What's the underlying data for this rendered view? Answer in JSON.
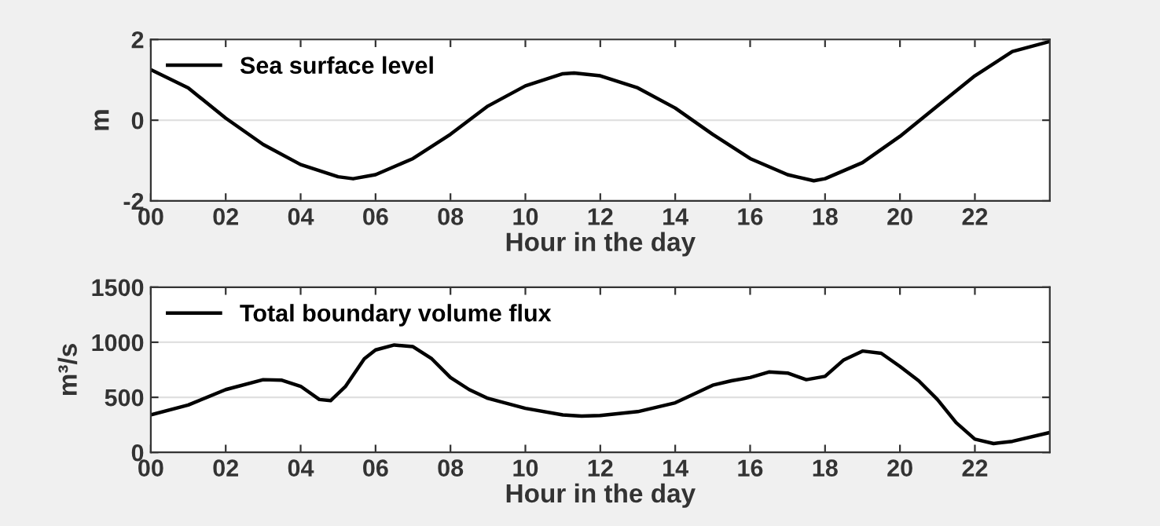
{
  "chart_data": [
    {
      "type": "line",
      "xlabel": "Hour in the day",
      "ylabel": "m",
      "xlim": [
        0,
        24
      ],
      "ylim": [
        -2,
        2
      ],
      "yticks": [
        -2,
        0,
        2
      ],
      "xticks": [
        {
          "value": 0,
          "label": "00"
        },
        {
          "value": 2,
          "label": "02"
        },
        {
          "value": 4,
          "label": "04"
        },
        {
          "value": 6,
          "label": "06"
        },
        {
          "value": 8,
          "label": "08"
        },
        {
          "value": 10,
          "label": "10"
        },
        {
          "value": 12,
          "label": "12"
        },
        {
          "value": 14,
          "label": "14"
        },
        {
          "value": 16,
          "label": "16"
        },
        {
          "value": 18,
          "label": "18"
        },
        {
          "value": 20,
          "label": "20"
        },
        {
          "value": 22,
          "label": "22"
        }
      ],
      "grid": "y",
      "legend": "top left",
      "series": [
        {
          "name": "Sea surface level",
          "color": "#000000",
          "x": [
            0,
            1,
            2,
            3,
            4,
            5,
            5.4,
            6,
            7,
            8,
            9,
            10,
            11,
            11.3,
            12,
            13,
            14,
            15,
            16,
            17,
            17.7,
            18,
            19,
            20,
            21,
            22,
            23,
            24
          ],
          "values": [
            1.25,
            0.8,
            0.05,
            -0.6,
            -1.1,
            -1.4,
            -1.45,
            -1.35,
            -0.95,
            -0.35,
            0.35,
            0.85,
            1.15,
            1.17,
            1.1,
            0.8,
            0.3,
            -0.35,
            -0.95,
            -1.35,
            -1.5,
            -1.45,
            -1.05,
            -0.4,
            0.35,
            1.1,
            1.7,
            1.95
          ]
        }
      ]
    },
    {
      "type": "line",
      "xlabel": "Hour in the day",
      "ylabel": "m³/s",
      "xlim": [
        0,
        24
      ],
      "ylim": [
        0,
        1500
      ],
      "yticks": [
        0,
        500,
        1000,
        1500
      ],
      "xticks": [
        {
          "value": 0,
          "label": "00"
        },
        {
          "value": 2,
          "label": "02"
        },
        {
          "value": 4,
          "label": "04"
        },
        {
          "value": 6,
          "label": "06"
        },
        {
          "value": 8,
          "label": "08"
        },
        {
          "value": 10,
          "label": "10"
        },
        {
          "value": 12,
          "label": "12"
        },
        {
          "value": 14,
          "label": "14"
        },
        {
          "value": 16,
          "label": "16"
        },
        {
          "value": 18,
          "label": "18"
        },
        {
          "value": 20,
          "label": "20"
        },
        {
          "value": 22,
          "label": "22"
        }
      ],
      "grid": "y",
      "legend": "top left",
      "series": [
        {
          "name": "Total boundary volume flux",
          "color": "#000000",
          "x": [
            0,
            1,
            2,
            3,
            3.5,
            4,
            4.5,
            4.8,
            5.2,
            5.7,
            6,
            6.5,
            7,
            7.5,
            8,
            8.5,
            9,
            10,
            11,
            11.5,
            12,
            13,
            14,
            15,
            15.5,
            16,
            16.5,
            17,
            17.5,
            18,
            18.5,
            19,
            19.5,
            20,
            20.5,
            21,
            21.5,
            22,
            22.5,
            23,
            24
          ],
          "values": [
            340,
            430,
            570,
            660,
            655,
            600,
            480,
            470,
            600,
            850,
            930,
            975,
            960,
            850,
            680,
            570,
            490,
            400,
            340,
            330,
            335,
            370,
            450,
            610,
            650,
            680,
            730,
            720,
            660,
            690,
            840,
            920,
            900,
            780,
            650,
            480,
            270,
            120,
            80,
            100,
            180
          ]
        }
      ]
    }
  ]
}
